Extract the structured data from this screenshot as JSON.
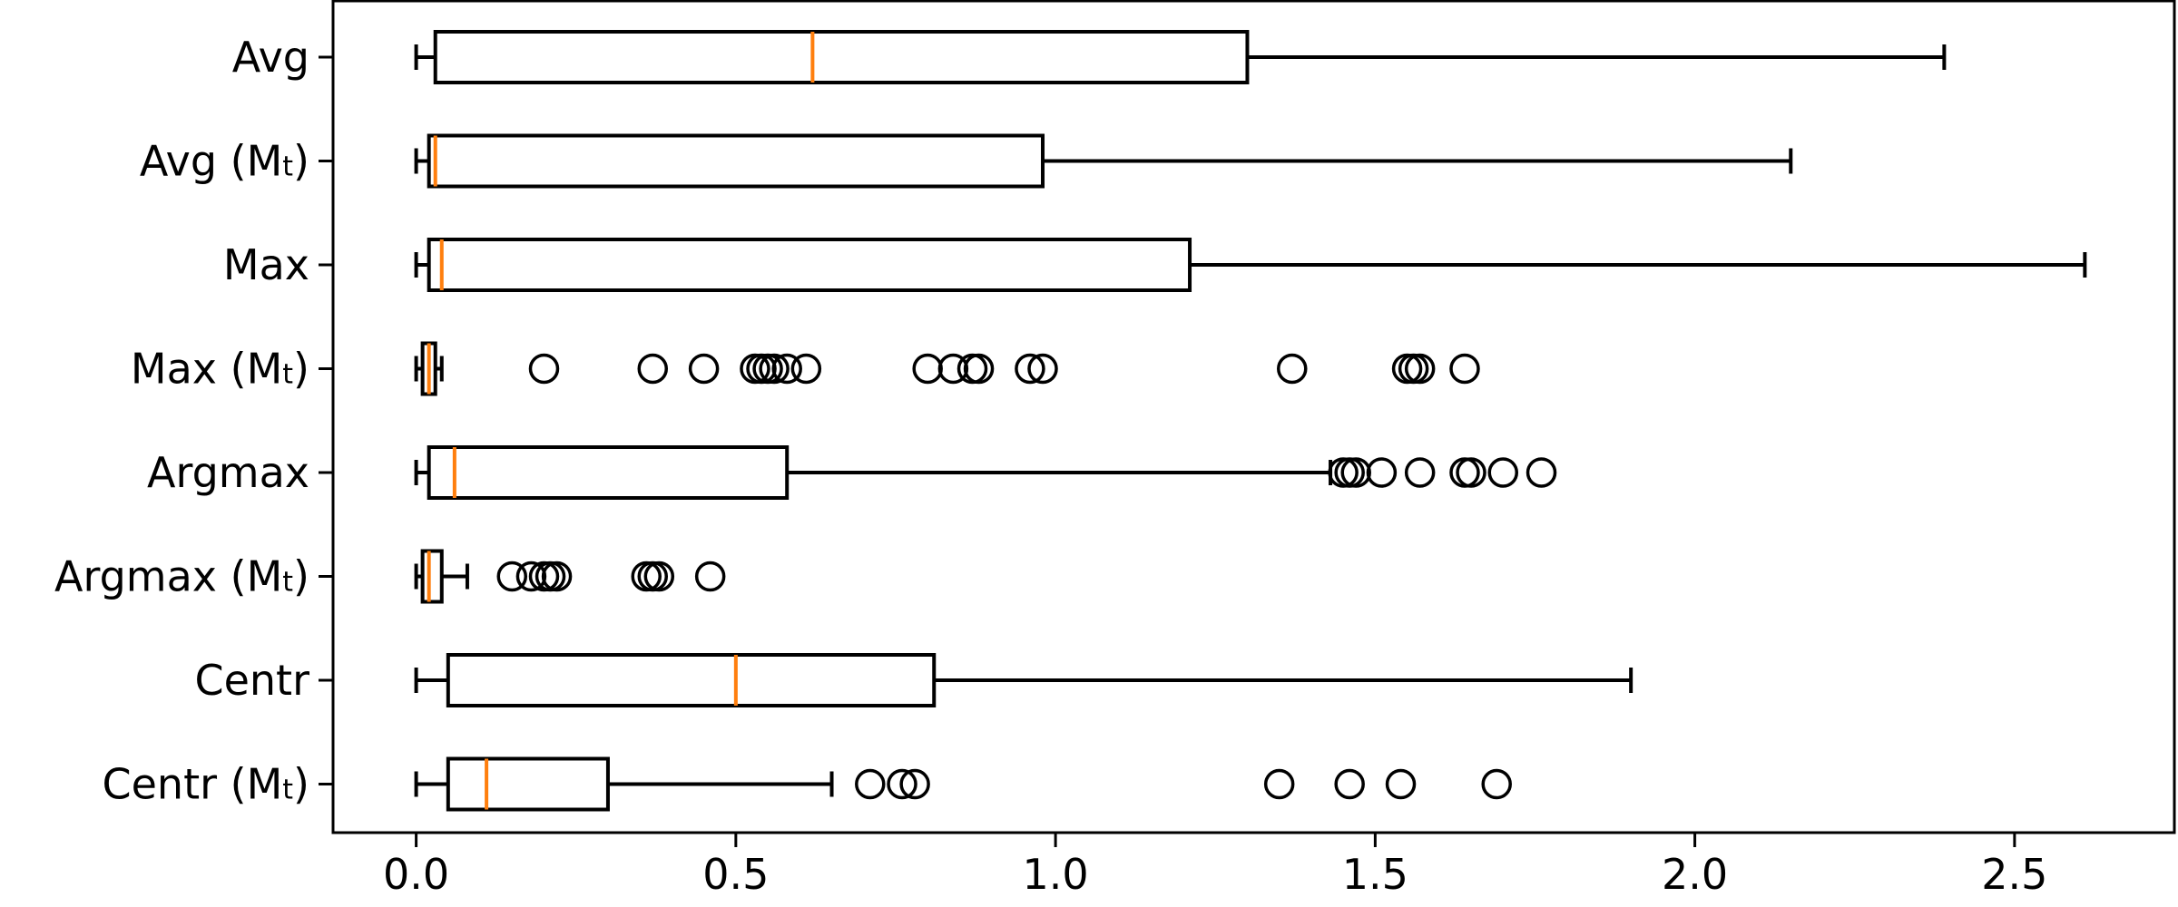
{
  "chart_data": {
    "type": "boxplot",
    "orientation": "horizontal",
    "title": "",
    "xlabel": "",
    "ylabel": "",
    "xlim": [
      -0.13,
      2.75
    ],
    "xticks": [
      0.0,
      0.5,
      1.0,
      1.5,
      2.0,
      2.5
    ],
    "xtick_labels": [
      "0.0",
      "0.5",
      "1.0",
      "1.5",
      "2.0",
      "2.5"
    ],
    "grid": false,
    "colors": {
      "box": "#000000",
      "median": "#ff7f0e",
      "flier": "#000000"
    },
    "series": [
      {
        "label_main": "Avg",
        "label_sub": "",
        "whisker_low": 0.0,
        "q1": 0.03,
        "median": 0.62,
        "q3": 1.3,
        "whisker_high": 2.39,
        "fliers": []
      },
      {
        "label_main": "Avg (M",
        "label_sub": "t",
        "whisker_low": 0.0,
        "q1": 0.02,
        "median": 0.03,
        "q3": 0.98,
        "whisker_high": 2.15,
        "fliers": []
      },
      {
        "label_main": "Max",
        "label_sub": "",
        "whisker_low": 0.0,
        "q1": 0.02,
        "median": 0.04,
        "q3": 1.21,
        "whisker_high": 2.61,
        "fliers": []
      },
      {
        "label_main": "Max (M",
        "label_sub": "t",
        "whisker_low": 0.0,
        "q1": 0.01,
        "median": 0.02,
        "q3": 0.03,
        "whisker_high": 0.04,
        "fliers": [
          0.2,
          0.37,
          0.45,
          0.53,
          0.54,
          0.55,
          0.56,
          0.58,
          0.61,
          0.8,
          0.84,
          0.87,
          0.88,
          0.96,
          0.98,
          1.37,
          1.55,
          1.56,
          1.57,
          1.64
        ]
      },
      {
        "label_main": "Argmax",
        "label_sub": "",
        "whisker_low": 0.0,
        "q1": 0.02,
        "median": 0.06,
        "q3": 0.58,
        "whisker_high": 1.43,
        "fliers": [
          1.45,
          1.46,
          1.47,
          1.51,
          1.57,
          1.64,
          1.65,
          1.7,
          1.76
        ]
      },
      {
        "label_main": "Argmax (M",
        "label_sub": "t",
        "whisker_low": 0.0,
        "q1": 0.01,
        "median": 0.02,
        "q3": 0.04,
        "whisker_high": 0.08,
        "fliers": [
          0.15,
          0.18,
          0.2,
          0.21,
          0.22,
          0.36,
          0.37,
          0.38,
          0.46
        ]
      },
      {
        "label_main": "Centr",
        "label_sub": "",
        "whisker_low": 0.0,
        "q1": 0.05,
        "median": 0.5,
        "q3": 0.81,
        "whisker_high": 1.9,
        "fliers": []
      },
      {
        "label_main": "Centr (M",
        "label_sub": "t",
        "whisker_low": 0.0,
        "q1": 0.05,
        "median": 0.11,
        "q3": 0.3,
        "whisker_high": 0.65,
        "fliers": [
          0.71,
          0.76,
          0.78,
          1.35,
          1.46,
          1.54,
          1.69
        ]
      }
    ]
  }
}
